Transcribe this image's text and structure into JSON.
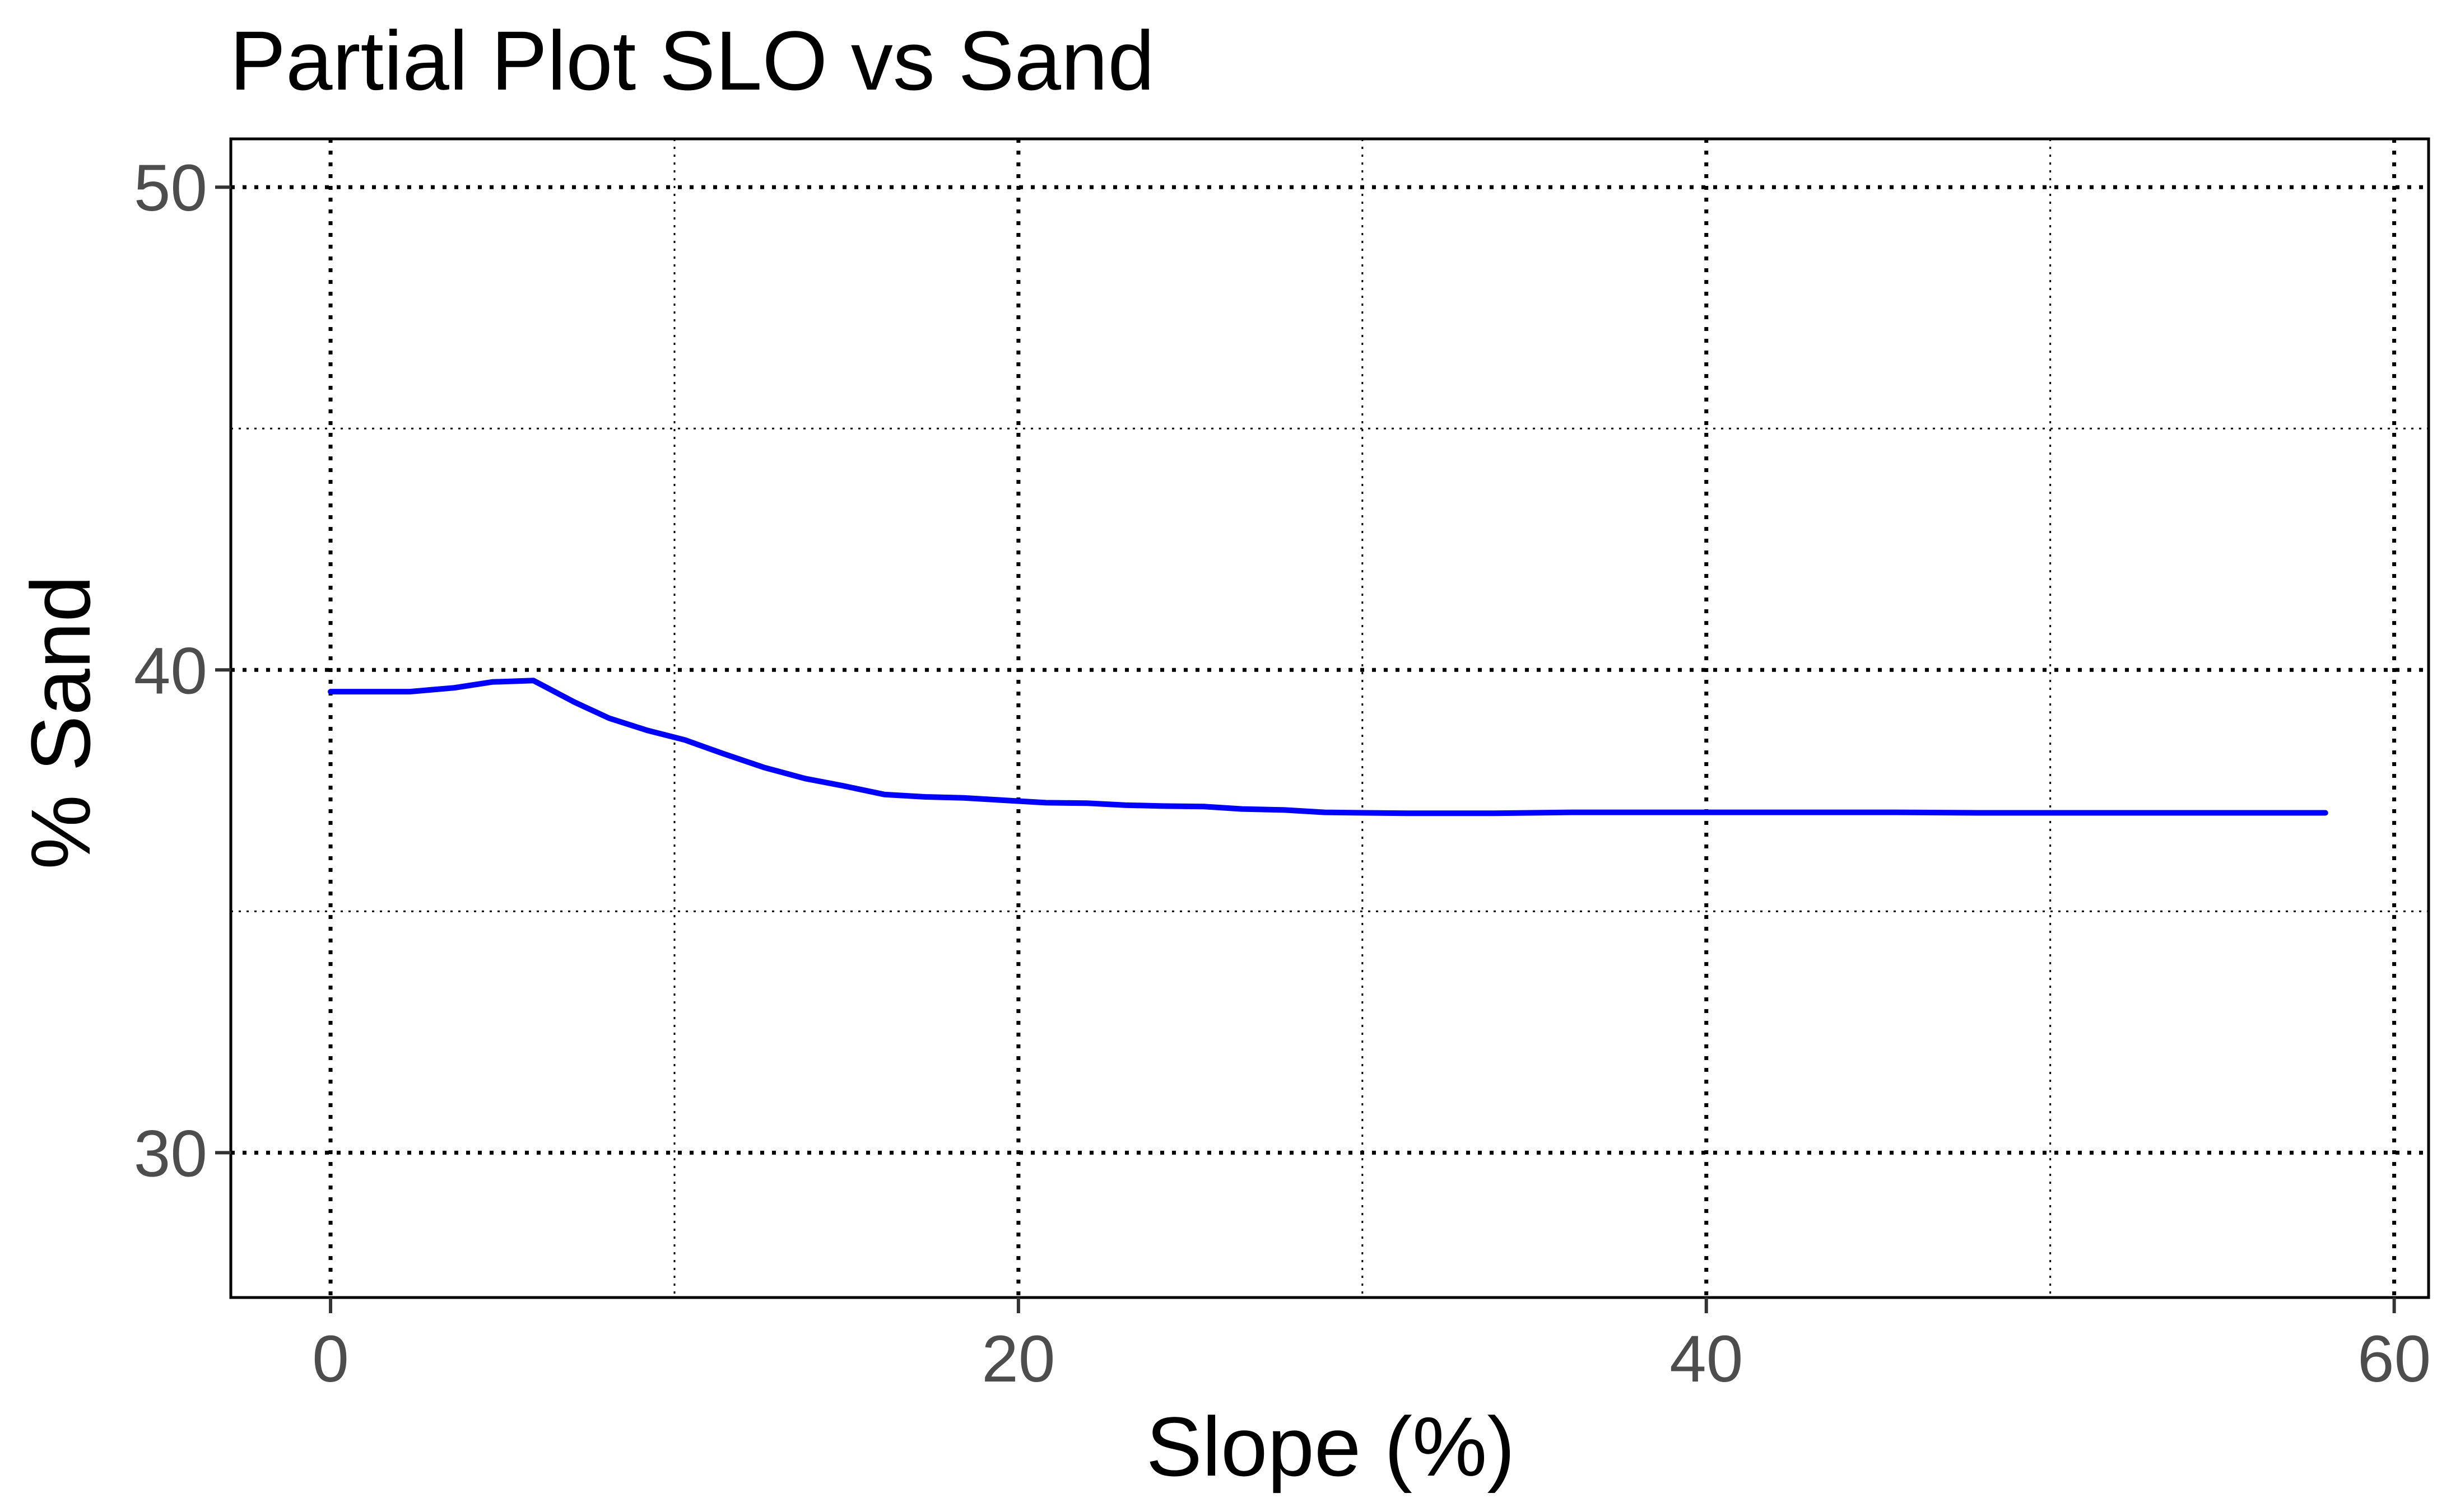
{
  "chart_data": {
    "type": "line",
    "title": "Partial Plot SLO vs Sand",
    "xlabel": "Slope (%)",
    "ylabel": "% Sand",
    "xlim": [
      -2.9,
      61
    ],
    "ylim": [
      27,
      51
    ],
    "x_ticks": [
      0,
      20,
      40,
      60
    ],
    "y_ticks": [
      30,
      40,
      50
    ],
    "x_tick_labels": [
      "0",
      "20",
      "40",
      "60"
    ],
    "y_tick_labels": [
      "30",
      "40",
      "50"
    ],
    "x_minor_ticks": [
      10,
      30,
      50
    ],
    "y_minor_ticks": [
      35,
      45
    ],
    "grid": true,
    "legend": "none",
    "series": [
      {
        "color": "#0000ff",
        "x": [
          0,
          2.3,
          3.6,
          4.7,
          5.9,
          7.1,
          8.1,
          9.2,
          10.3,
          11.4,
          12.6,
          13.8,
          14.9,
          16.1,
          17.3,
          18.4,
          19.6,
          20.8,
          22,
          23.1,
          24.2,
          25.4,
          26.5,
          27.7,
          28.9,
          30.1,
          31.3,
          33.7,
          36.1,
          38.4,
          40.8,
          43.1,
          45.5,
          47.9,
          50.2,
          52.6,
          55,
          58
        ],
        "y": [
          39.55,
          39.55,
          39.63,
          39.75,
          39.78,
          39.33,
          39.0,
          38.75,
          38.55,
          38.27,
          37.98,
          37.75,
          37.6,
          37.42,
          37.37,
          37.35,
          37.3,
          37.25,
          37.24,
          37.2,
          37.18,
          37.17,
          37.12,
          37.1,
          37.05,
          37.04,
          37.03,
          37.03,
          37.05,
          37.05,
          37.05,
          37.05,
          37.05,
          37.04,
          37.04,
          37.04,
          37.04,
          37.04
        ]
      }
    ]
  }
}
